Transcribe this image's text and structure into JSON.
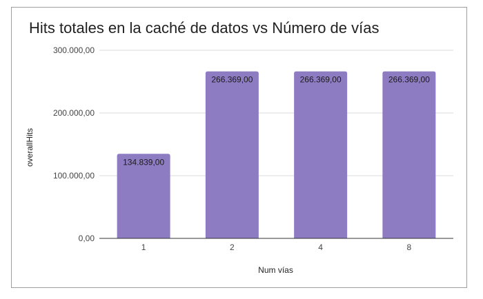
{
  "chart_data": {
    "type": "bar",
    "title": "Hits totales en la caché de datos vs Número de vías",
    "xlabel": "Num vías",
    "ylabel": "overallHits",
    "categories": [
      "1",
      "2",
      "4",
      "8"
    ],
    "values": [
      134839,
      266369,
      266369,
      266369
    ],
    "data_labels": [
      "134.839,00",
      "266.369,00",
      "266.369,00",
      "266.369,00"
    ],
    "ylim": [
      0,
      300000
    ],
    "yticks": [
      0,
      100000,
      200000,
      300000
    ],
    "ytick_labels": [
      "0,00",
      "100.000,00",
      "200.000,00",
      "300.000,00"
    ],
    "grid": true,
    "legend": "none",
    "bar_color": "#8e7cc3",
    "grid_color": "#d9d9d9",
    "axis_color": "#333333"
  }
}
